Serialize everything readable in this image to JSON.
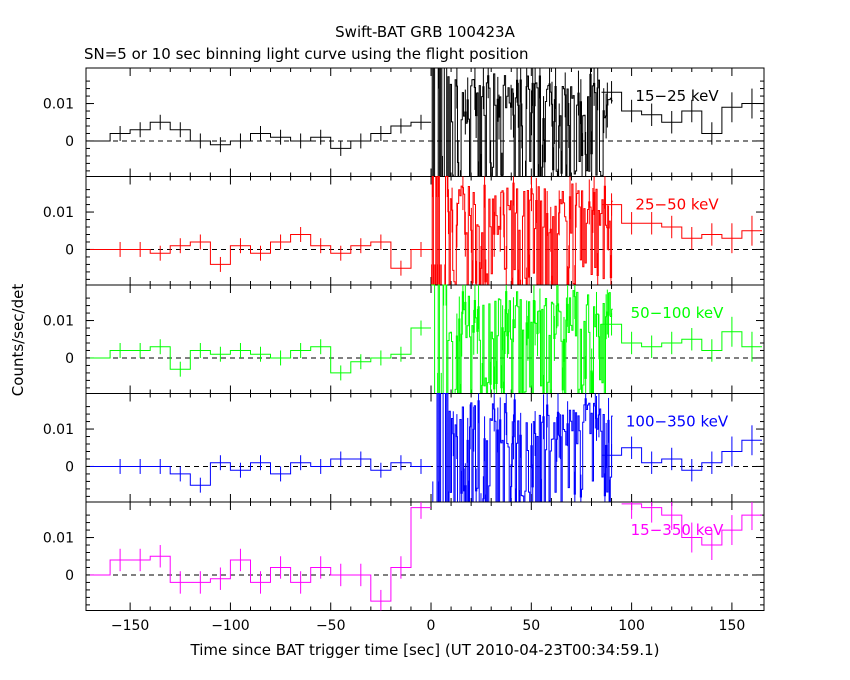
{
  "chart_data": {
    "type": "line",
    "title": "Swift-BAT GRB 100423A",
    "subtitle": "SN=5 or 10 sec binning light curve using the flight position",
    "xlabel": "Time since BAT trigger time [sec] (UT 2010-04-23T00:34:59.1)",
    "ylabel": "Counts/sec/det",
    "xlim": [
      -172,
      166
    ],
    "ylim": [
      -0.0095,
      0.0195
    ],
    "grid": false,
    "x_ticks": [
      -150,
      -100,
      -50,
      0,
      50,
      100,
      150
    ],
    "x_tick_labels": [
      "−150",
      "−100",
      "−50",
      "0",
      "50",
      "100",
      "150"
    ],
    "y_ticks": [
      0,
      0.01
    ],
    "y_tick_labels": [
      "0",
      "0.01"
    ],
    "panels": [
      {
        "name": "15−25 keV",
        "color": "#000000",
        "pre": [
          [
            -170,
            -160,
            0.0,
            0.0
          ],
          [
            -160,
            -150,
            0.002,
            0.002
          ],
          [
            -150,
            -140,
            0.003,
            0.002
          ],
          [
            -140,
            -130,
            0.005,
            0.002
          ],
          [
            -130,
            -120,
            0.003,
            0.002
          ],
          [
            -120,
            -110,
            0.0,
            0.002
          ],
          [
            -110,
            -100,
            -0.001,
            0.002
          ],
          [
            -100,
            -90,
            0.0,
            0.002
          ],
          [
            -90,
            -80,
            0.002,
            0.002
          ],
          [
            -80,
            -70,
            0.001,
            0.002
          ],
          [
            -70,
            -60,
            0.0,
            0.002
          ],
          [
            -60,
            -50,
            0.001,
            0.002
          ],
          [
            -50,
            -40,
            -0.002,
            0.002
          ],
          [
            -40,
            -30,
            0.0,
            0.002
          ],
          [
            -30,
            -20,
            0.002,
            0.002
          ],
          [
            -20,
            -10,
            0.004,
            0.002
          ],
          [
            -10,
            0,
            0.005,
            0.002
          ]
        ],
        "post": [
          [
            85,
            95,
            0.013,
            0.003
          ],
          [
            95,
            105,
            0.008,
            0.003
          ],
          [
            105,
            115,
            0.007,
            0.003
          ],
          [
            115,
            125,
            0.005,
            0.003
          ],
          [
            125,
            135,
            0.008,
            0.003
          ],
          [
            135,
            145,
            0.002,
            0.003
          ],
          [
            145,
            155,
            0.009,
            0.004
          ],
          [
            155,
            165,
            0.01,
            0.004
          ]
        ]
      },
      {
        "name": "25−50 keV",
        "color": "#ff0000",
        "pre": [
          [
            -170,
            -160,
            0.0,
            0.0
          ],
          [
            -160,
            -150,
            0.0,
            0.002
          ],
          [
            -150,
            -140,
            0.0,
            0.002
          ],
          [
            -140,
            -130,
            -0.001,
            0.002
          ],
          [
            -130,
            -120,
            0.001,
            0.002
          ],
          [
            -120,
            -110,
            0.002,
            0.002
          ],
          [
            -110,
            -100,
            -0.004,
            0.002
          ],
          [
            -100,
            -90,
            0.001,
            0.002
          ],
          [
            -90,
            -80,
            -0.001,
            0.002
          ],
          [
            -80,
            -70,
            0.002,
            0.002
          ],
          [
            -70,
            -60,
            0.004,
            0.002
          ],
          [
            -60,
            -50,
            0.001,
            0.002
          ],
          [
            -50,
            -40,
            -0.001,
            0.002
          ],
          [
            -40,
            -30,
            0.001,
            0.002
          ],
          [
            -30,
            -20,
            0.002,
            0.002
          ],
          [
            -20,
            -10,
            -0.005,
            0.002
          ],
          [
            -10,
            0,
            0.0,
            0.002
          ]
        ],
        "post": [
          [
            85,
            95,
            0.012,
            0.003
          ],
          [
            95,
            105,
            0.007,
            0.003
          ],
          [
            105,
            115,
            0.007,
            0.003
          ],
          [
            115,
            125,
            0.006,
            0.003
          ],
          [
            125,
            135,
            0.003,
            0.003
          ],
          [
            135,
            145,
            0.004,
            0.003
          ],
          [
            145,
            155,
            0.003,
            0.004
          ],
          [
            155,
            165,
            0.005,
            0.004
          ]
        ]
      },
      {
        "name": "50−100 keV",
        "color": "#00ff00",
        "pre": [
          [
            -170,
            -160,
            0.0,
            0.0
          ],
          [
            -160,
            -150,
            0.002,
            0.002
          ],
          [
            -150,
            -140,
            0.002,
            0.002
          ],
          [
            -140,
            -130,
            0.003,
            0.002
          ],
          [
            -130,
            -120,
            -0.003,
            0.002
          ],
          [
            -120,
            -110,
            0.002,
            0.002
          ],
          [
            -110,
            -100,
            0.001,
            0.002
          ],
          [
            -100,
            -90,
            0.002,
            0.002
          ],
          [
            -90,
            -80,
            0.001,
            0.002
          ],
          [
            -80,
            -70,
            0.0,
            0.002
          ],
          [
            -70,
            -60,
            0.002,
            0.002
          ],
          [
            -60,
            -50,
            0.003,
            0.002
          ],
          [
            -50,
            -40,
            -0.004,
            0.002
          ],
          [
            -40,
            -30,
            -0.001,
            0.002
          ],
          [
            -30,
            -20,
            0.0,
            0.002
          ],
          [
            -20,
            -10,
            0.001,
            0.002
          ],
          [
            -10,
            0,
            0.008,
            0.002
          ]
        ],
        "post": [
          [
            85,
            95,
            0.009,
            0.003
          ],
          [
            95,
            105,
            0.004,
            0.003
          ],
          [
            105,
            115,
            0.003,
            0.003
          ],
          [
            115,
            125,
            0.004,
            0.003
          ],
          [
            125,
            135,
            0.005,
            0.003
          ],
          [
            135,
            145,
            0.002,
            0.003
          ],
          [
            145,
            155,
            0.007,
            0.004
          ],
          [
            155,
            165,
            0.003,
            0.004
          ]
        ]
      },
      {
        "name": "100−350 keV",
        "color": "#0000ff",
        "pre": [
          [
            -170,
            -160,
            0.0,
            0.0
          ],
          [
            -160,
            -150,
            0.0,
            0.002
          ],
          [
            -150,
            -140,
            0.0,
            0.002
          ],
          [
            -140,
            -130,
            0.0,
            0.002
          ],
          [
            -130,
            -120,
            -0.002,
            0.002
          ],
          [
            -120,
            -110,
            -0.005,
            0.002
          ],
          [
            -110,
            -100,
            0.001,
            0.002
          ],
          [
            -100,
            -90,
            -0.001,
            0.002
          ],
          [
            -90,
            -80,
            0.001,
            0.002
          ],
          [
            -80,
            -70,
            -0.002,
            0.002
          ],
          [
            -70,
            -60,
            0.001,
            0.002
          ],
          [
            -60,
            -50,
            0.0,
            0.002
          ],
          [
            -50,
            -40,
            0.002,
            0.002
          ],
          [
            -40,
            -30,
            0.002,
            0.002
          ],
          [
            -30,
            -20,
            -0.001,
            0.002
          ],
          [
            -20,
            -10,
            0.001,
            0.002
          ],
          [
            -10,
            0,
            0.0,
            0.002
          ]
        ],
        "post": [
          [
            85,
            95,
            0.003,
            0.003
          ],
          [
            95,
            105,
            0.005,
            0.003
          ],
          [
            105,
            115,
            0.001,
            0.003
          ],
          [
            115,
            125,
            0.002,
            0.003
          ],
          [
            125,
            135,
            -0.001,
            0.003
          ],
          [
            135,
            145,
            0.001,
            0.003
          ],
          [
            145,
            155,
            0.004,
            0.004
          ],
          [
            155,
            165,
            0.007,
            0.004
          ]
        ]
      },
      {
        "name": "15−350 keV",
        "color": "#ff00ff",
        "pre": [
          [
            -170,
            -160,
            0.0,
            0.0
          ],
          [
            -160,
            -150,
            0.004,
            0.003
          ],
          [
            -150,
            -140,
            0.004,
            0.003
          ],
          [
            -140,
            -130,
            0.005,
            0.003
          ],
          [
            -130,
            -120,
            -0.002,
            0.003
          ],
          [
            -120,
            -110,
            -0.002,
            0.003
          ],
          [
            -110,
            -100,
            -0.001,
            0.003
          ],
          [
            -100,
            -90,
            0.004,
            0.003
          ],
          [
            -90,
            -80,
            -0.002,
            0.003
          ],
          [
            -80,
            -70,
            0.002,
            0.003
          ],
          [
            -70,
            -60,
            -0.002,
            0.003
          ],
          [
            -60,
            -50,
            0.002,
            0.003
          ],
          [
            -50,
            -40,
            0.0,
            0.003
          ],
          [
            -40,
            -30,
            0.0,
            0.003
          ],
          [
            -30,
            -20,
            -0.007,
            0.003
          ],
          [
            -20,
            -10,
            0.002,
            0.003
          ],
          [
            -10,
            0,
            0.018,
            0.003
          ]
        ],
        "post": [
          [
            95,
            105,
            0.019,
            0.004
          ],
          [
            105,
            115,
            0.018,
            0.004
          ],
          [
            115,
            125,
            0.016,
            0.004
          ],
          [
            125,
            135,
            0.01,
            0.004
          ],
          [
            135,
            145,
            0.008,
            0.004
          ],
          [
            145,
            155,
            0.012,
            0.004
          ],
          [
            155,
            165,
            0.016,
            0.004
          ]
        ]
      }
    ]
  }
}
